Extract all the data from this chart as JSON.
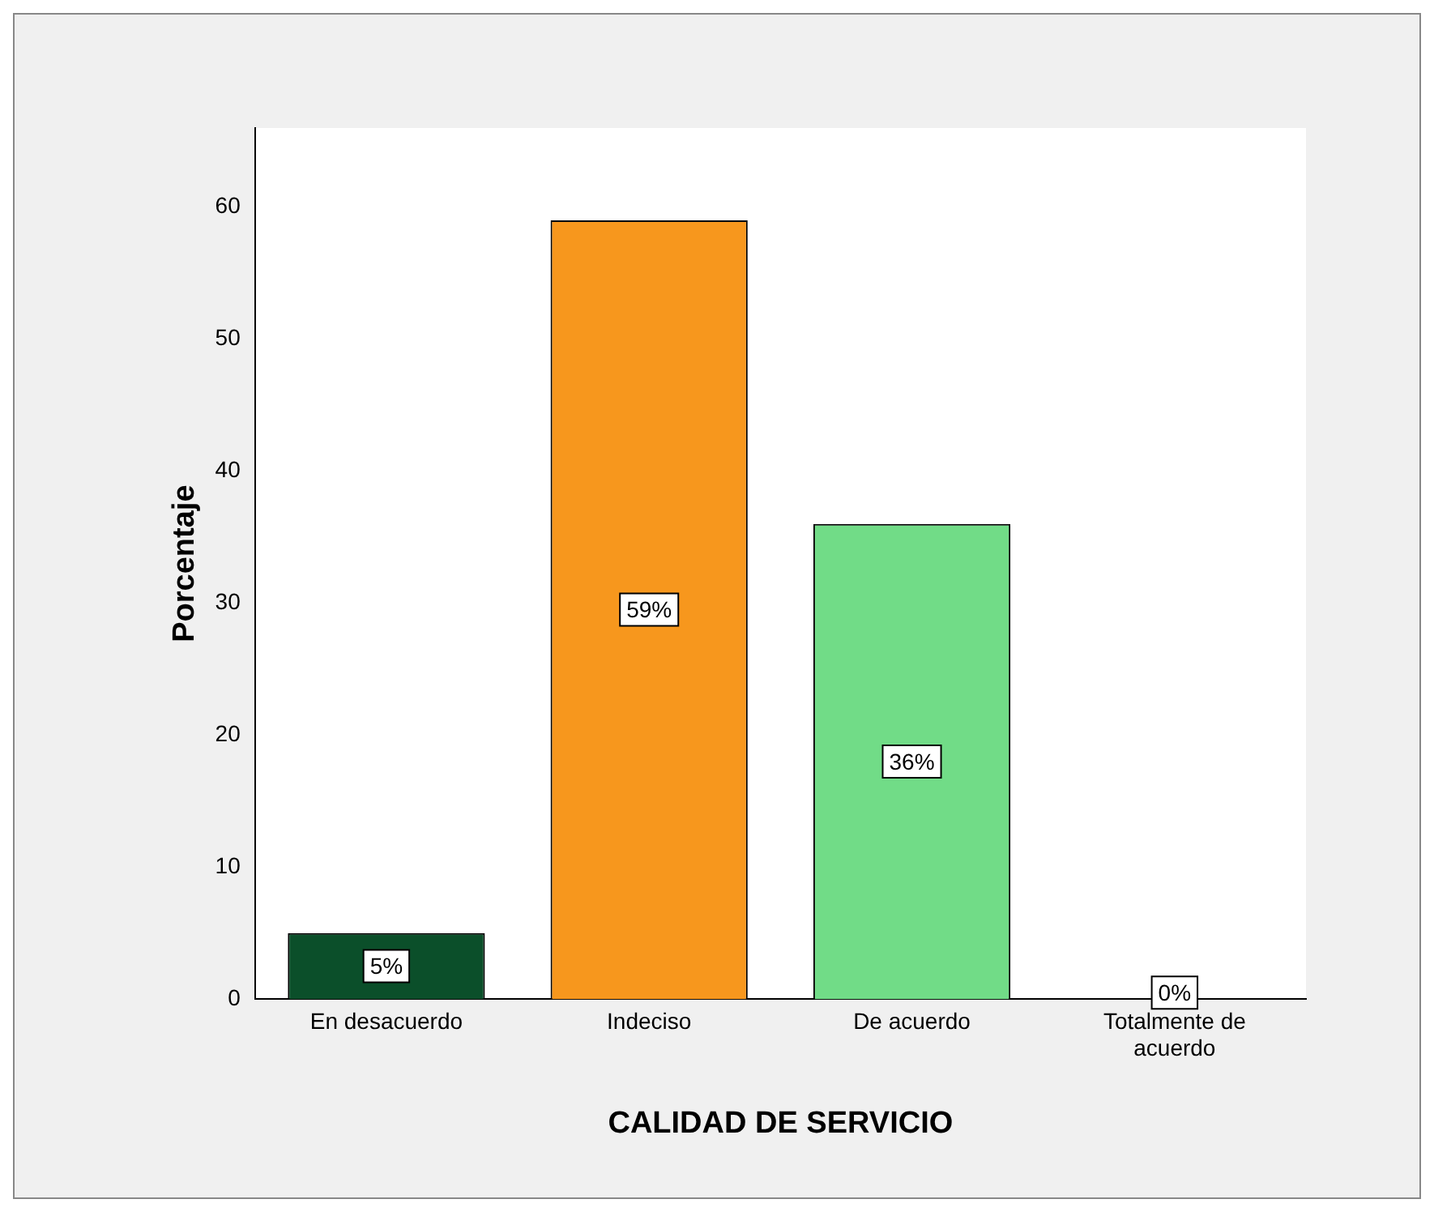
{
  "chart_data": {
    "type": "bar",
    "xlabel": "CALIDAD DE SERVICIO",
    "ylabel": "Porcentaje",
    "categories": [
      "En desacuerdo",
      "Indeciso",
      "De acuerdo",
      "Totalmente de acuerdo"
    ],
    "values": [
      5,
      59,
      36,
      0
    ],
    "colors": [
      "#0b4f2a",
      "#f7971d",
      "#71dc87",
      "#3333a0"
    ],
    "value_labels": [
      "5%",
      "59%",
      "36%",
      "0%"
    ],
    "ylim": [
      0,
      66
    ],
    "yticks": [
      0,
      10,
      20,
      30,
      40,
      50,
      60
    ],
    "grid": false,
    "legend": false
  }
}
